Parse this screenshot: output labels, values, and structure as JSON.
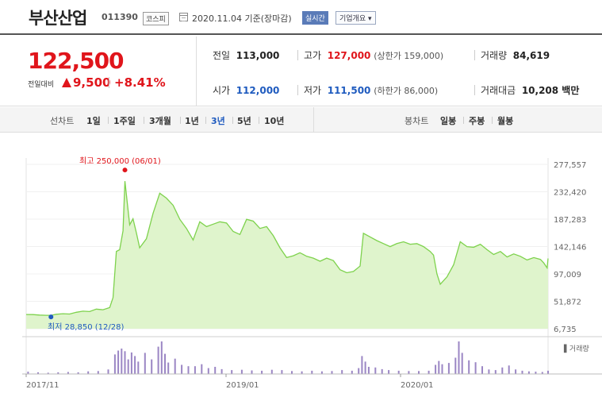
{
  "header": {
    "name": "부산산업",
    "code": "011390",
    "market": "코스피",
    "date": "2020.11.04 기준(장마감)",
    "live_label": "실시간",
    "overview_label": "기업개요 ▾"
  },
  "price": {
    "current": "122,500",
    "compare_label": "전일대비",
    "change": "9,500",
    "rate": "+8.41%",
    "prev_label": "전일",
    "prev_value": "113,000",
    "open_label": "시가",
    "open_value": "112,000",
    "high_label": "고가",
    "high_value": "127,000",
    "upper_limit": "(상한가 159,000)",
    "low_label": "저가",
    "low_value": "111,500",
    "lower_limit": "(하한가 86,000)",
    "volume_label": "거래량",
    "volume_value": "84,619",
    "amount_label": "거래대금",
    "amount_value": "10,208 백만"
  },
  "periods": {
    "line_label": "선차트",
    "line_items": [
      "1일",
      "1주일",
      "3개월",
      "1년",
      "3년",
      "5년",
      "10년"
    ],
    "selected": "3년",
    "candle_label": "봉차트",
    "candle_items": [
      "일봉",
      "주봉",
      "월봉"
    ]
  },
  "chart_data": {
    "type": "area",
    "y_ticks": [
      "277,557",
      "232,420",
      "187,283",
      "142,146",
      "97,009",
      "51,872",
      "6,735"
    ],
    "y_range": [
      6735,
      277557
    ],
    "x_labels": [
      "2017/11",
      "2019/01",
      "2020/01"
    ],
    "x_range": [
      "2017-11-06",
      "2020-11-04"
    ],
    "max_annotation": "최고 250,000 (06/01)",
    "min_annotation": "최저 28,850 (12/28)",
    "volume_legend": "▌거래량",
    "colors": {
      "line": "#7ed24d",
      "fill": "#dff4cc",
      "volume": "#9b86c4",
      "max": "#e0151b",
      "min": "#1f5bbf"
    },
    "series": [
      {
        "name": "",
        "values": [
          [
            "2017-11-06",
            30200
          ],
          [
            "2017-11-20",
            30000
          ],
          [
            "2017-12-04",
            29300
          ],
          [
            "2017-12-18",
            28900
          ],
          [
            "2017-12-28",
            28850
          ],
          [
            "2018-01-08",
            30500
          ],
          [
            "2018-01-22",
            31500
          ],
          [
            "2018-02-05",
            31000
          ],
          [
            "2018-02-19",
            33800
          ],
          [
            "2018-03-05",
            35700
          ],
          [
            "2018-03-19",
            35000
          ],
          [
            "2018-04-02",
            39000
          ],
          [
            "2018-04-16",
            38000
          ],
          [
            "2018-04-30",
            41500
          ],
          [
            "2018-05-07",
            58000
          ],
          [
            "2018-05-14",
            134000
          ],
          [
            "2018-05-21",
            137000
          ],
          [
            "2018-05-28",
            168000
          ],
          [
            "2018-06-01",
            250000
          ],
          [
            "2018-06-11",
            178000
          ],
          [
            "2018-06-18",
            188000
          ],
          [
            "2018-06-25",
            165000
          ],
          [
            "2018-07-02",
            140000
          ],
          [
            "2018-07-16",
            155000
          ],
          [
            "2018-07-30",
            197000
          ],
          [
            "2018-08-13",
            230000
          ],
          [
            "2018-08-27",
            222000
          ],
          [
            "2018-09-10",
            210000
          ],
          [
            "2018-09-24",
            187000
          ],
          [
            "2018-10-08",
            172000
          ],
          [
            "2018-10-22",
            153000
          ],
          [
            "2018-11-05",
            183000
          ],
          [
            "2018-11-19",
            175000
          ],
          [
            "2018-12-03",
            179000
          ],
          [
            "2018-12-17",
            183000
          ],
          [
            "2018-12-31",
            181000
          ],
          [
            "2019-01-14",
            167000
          ],
          [
            "2019-01-28",
            162000
          ],
          [
            "2019-02-11",
            187000
          ],
          [
            "2019-02-25",
            184000
          ],
          [
            "2019-03-11",
            172000
          ],
          [
            "2019-03-25",
            175000
          ],
          [
            "2019-04-08",
            160000
          ],
          [
            "2019-04-22",
            140000
          ],
          [
            "2019-05-06",
            124000
          ],
          [
            "2019-05-20",
            127000
          ],
          [
            "2019-06-03",
            132000
          ],
          [
            "2019-06-17",
            126000
          ],
          [
            "2019-07-01",
            123000
          ],
          [
            "2019-07-15",
            118000
          ],
          [
            "2019-07-29",
            123000
          ],
          [
            "2019-08-12",
            119000
          ],
          [
            "2019-08-26",
            104000
          ],
          [
            "2019-09-09",
            99000
          ],
          [
            "2019-09-23",
            101000
          ],
          [
            "2019-10-07",
            110000
          ],
          [
            "2019-10-14",
            164000
          ],
          [
            "2019-10-28",
            158000
          ],
          [
            "2019-11-11",
            152000
          ],
          [
            "2019-11-25",
            147000
          ],
          [
            "2019-12-09",
            142000
          ],
          [
            "2019-12-23",
            147000
          ],
          [
            "2020-01-06",
            150000
          ],
          [
            "2020-01-20",
            146000
          ],
          [
            "2020-02-03",
            147000
          ],
          [
            "2020-02-17",
            142000
          ],
          [
            "2020-03-02",
            134000
          ],
          [
            "2020-03-09",
            128000
          ],
          [
            "2020-03-16",
            97000
          ],
          [
            "2020-03-23",
            80000
          ],
          [
            "2020-04-06",
            92000
          ],
          [
            "2020-04-20",
            112000
          ],
          [
            "2020-05-04",
            150000
          ],
          [
            "2020-05-18",
            142000
          ],
          [
            "2020-06-01",
            141000
          ],
          [
            "2020-06-15",
            146000
          ],
          [
            "2020-06-29",
            137000
          ],
          [
            "2020-07-13",
            129000
          ],
          [
            "2020-07-27",
            134000
          ],
          [
            "2020-08-10",
            125000
          ],
          [
            "2020-08-24",
            130000
          ],
          [
            "2020-09-07",
            126000
          ],
          [
            "2020-09-21",
            120000
          ],
          [
            "2020-10-05",
            124000
          ],
          [
            "2020-10-19",
            121000
          ],
          [
            "2020-10-26",
            115000
          ],
          [
            "2020-11-02",
            107000
          ],
          [
            "2020-11-04",
            122500
          ]
        ]
      }
    ],
    "volume_bars": [
      [
        "2017-11-10",
        0.07
      ],
      [
        "2017-12-01",
        0.05
      ],
      [
        "2017-12-22",
        0.04
      ],
      [
        "2018-01-12",
        0.05
      ],
      [
        "2018-02-02",
        0.06
      ],
      [
        "2018-02-23",
        0.05
      ],
      [
        "2018-03-16",
        0.08
      ],
      [
        "2018-04-06",
        0.09
      ],
      [
        "2018-04-27",
        0.14
      ],
      [
        "2018-05-11",
        0.6
      ],
      [
        "2018-05-18",
        0.72
      ],
      [
        "2018-05-25",
        0.78
      ],
      [
        "2018-06-01",
        0.7
      ],
      [
        "2018-06-08",
        0.45
      ],
      [
        "2018-06-15",
        0.66
      ],
      [
        "2018-06-22",
        0.55
      ],
      [
        "2018-06-29",
        0.38
      ],
      [
        "2018-07-13",
        0.65
      ],
      [
        "2018-07-27",
        0.45
      ],
      [
        "2018-08-10",
        0.84
      ],
      [
        "2018-08-17",
        1.0
      ],
      [
        "2018-08-24",
        0.62
      ],
      [
        "2018-08-31",
        0.35
      ],
      [
        "2018-09-14",
        0.47
      ],
      [
        "2018-09-28",
        0.28
      ],
      [
        "2018-10-12",
        0.24
      ],
      [
        "2018-10-26",
        0.24
      ],
      [
        "2018-11-09",
        0.3
      ],
      [
        "2018-11-23",
        0.18
      ],
      [
        "2018-12-07",
        0.22
      ],
      [
        "2018-12-21",
        0.15
      ],
      [
        "2019-01-11",
        0.12
      ],
      [
        "2019-02-01",
        0.13
      ],
      [
        "2019-02-22",
        0.11
      ],
      [
        "2019-03-15",
        0.1
      ],
      [
        "2019-04-05",
        0.13
      ],
      [
        "2019-04-26",
        0.12
      ],
      [
        "2019-05-17",
        0.09
      ],
      [
        "2019-06-07",
        0.08
      ],
      [
        "2019-06-28",
        0.1
      ],
      [
        "2019-07-19",
        0.08
      ],
      [
        "2019-08-09",
        0.09
      ],
      [
        "2019-08-30",
        0.12
      ],
      [
        "2019-09-20",
        0.1
      ],
      [
        "2019-10-04",
        0.18
      ],
      [
        "2019-10-11",
        0.55
      ],
      [
        "2019-10-18",
        0.38
      ],
      [
        "2019-10-25",
        0.22
      ],
      [
        "2019-11-08",
        0.2
      ],
      [
        "2019-11-22",
        0.15
      ],
      [
        "2019-12-06",
        0.12
      ],
      [
        "2019-12-27",
        0.1
      ],
      [
        "2020-01-17",
        0.09
      ],
      [
        "2020-02-07",
        0.09
      ],
      [
        "2020-02-28",
        0.1
      ],
      [
        "2020-03-13",
        0.28
      ],
      [
        "2020-03-20",
        0.4
      ],
      [
        "2020-03-27",
        0.3
      ],
      [
        "2020-04-10",
        0.34
      ],
      [
        "2020-04-24",
        0.5
      ],
      [
        "2020-05-01",
        1.0
      ],
      [
        "2020-05-08",
        0.65
      ],
      [
        "2020-05-22",
        0.42
      ],
      [
        "2020-06-05",
        0.36
      ],
      [
        "2020-06-19",
        0.24
      ],
      [
        "2020-07-03",
        0.14
      ],
      [
        "2020-07-17",
        0.12
      ],
      [
        "2020-07-31",
        0.2
      ],
      [
        "2020-08-14",
        0.26
      ],
      [
        "2020-08-28",
        0.14
      ],
      [
        "2020-09-11",
        0.1
      ],
      [
        "2020-09-25",
        0.08
      ],
      [
        "2020-10-09",
        0.07
      ],
      [
        "2020-10-23",
        0.06
      ],
      [
        "2020-11-04",
        0.1
      ]
    ]
  }
}
